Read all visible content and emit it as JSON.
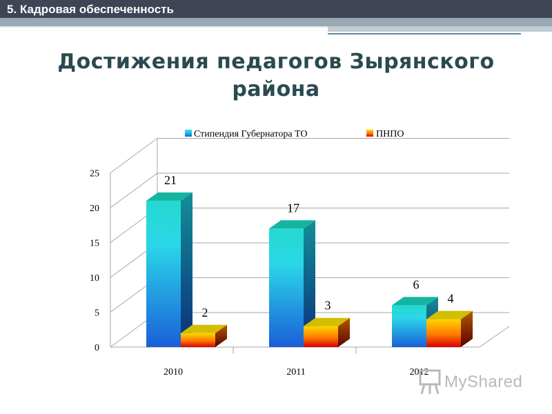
{
  "header": {
    "section_label": "5. Кадровая обеспеченность"
  },
  "title": "Достижения педагогов Зырянского района",
  "watermark": {
    "text": "MyShared"
  },
  "colors": {
    "topbar": "#3f4555",
    "title": "#2a4a50",
    "series1": "#1ea6e0",
    "series2": "#f0a000"
  },
  "chart_data": {
    "type": "bar",
    "title": "",
    "xlabel": "",
    "ylabel": "",
    "categories": [
      "2010",
      "2011",
      "2012"
    ],
    "series": [
      {
        "name": "Стипендия Губернатора ТО",
        "values": [
          21,
          17,
          6
        ]
      },
      {
        "name": "ПНПО",
        "values": [
          2,
          3,
          4
        ]
      }
    ],
    "ylim": [
      0,
      25
    ],
    "yticks": [
      0,
      5,
      10,
      15,
      20,
      25
    ],
    "grid": true,
    "legend": "top",
    "three_d": true,
    "data_labels": true
  }
}
